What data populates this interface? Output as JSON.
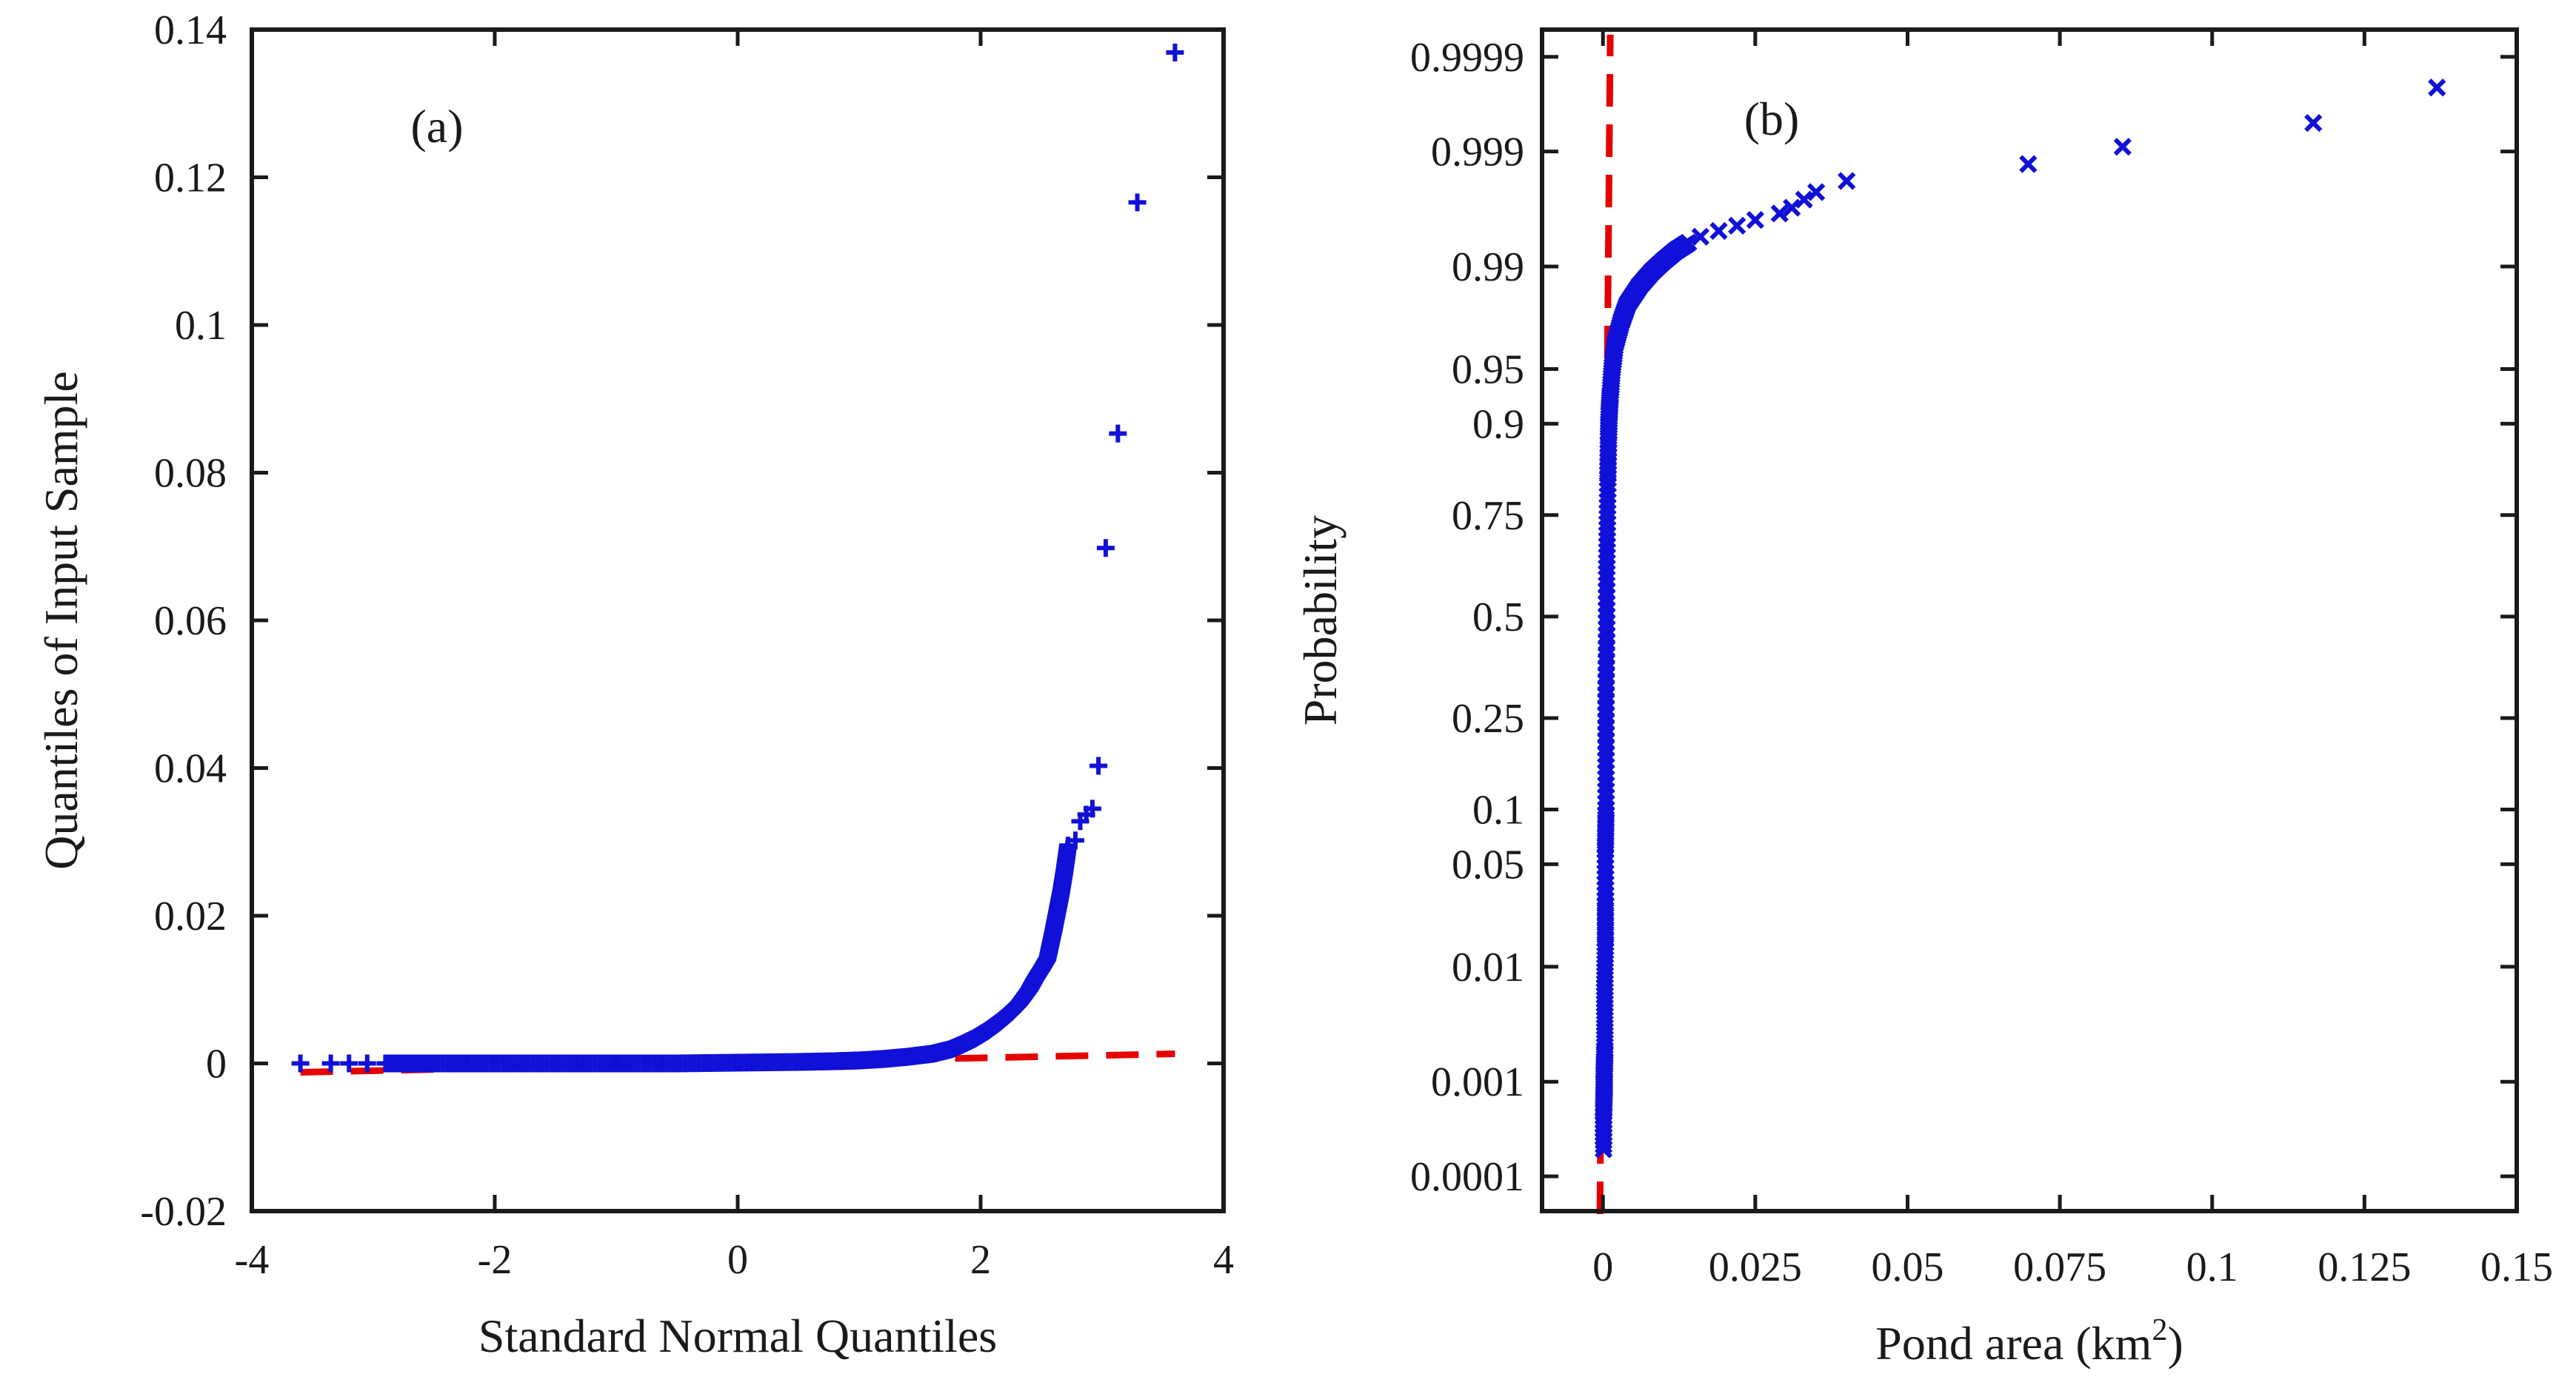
{
  "chart_data": [
    {
      "type": "scatter",
      "panel_label": "(a)",
      "title": "",
      "xlabel": "Standard Normal Quantiles",
      "ylabel": "Quantiles of Input Sample",
      "xlim": [
        -4,
        4
      ],
      "ylim": [
        -0.02,
        0.14
      ],
      "x_ticks": [
        -4,
        -2,
        0,
        2,
        4
      ],
      "x_tick_labels": [
        "-4",
        "-2",
        "0",
        "2",
        "4"
      ],
      "y_ticks": [
        -0.02,
        0,
        0.02,
        0.04,
        0.06,
        0.08,
        0.1,
        0.12,
        0.14
      ],
      "y_tick_labels": [
        "-0.02",
        "0",
        "0.02",
        "0.04",
        "0.06",
        "0.08",
        "0.1",
        "0.12",
        "0.14"
      ],
      "marker": "+",
      "marker_color": "#1010d8",
      "reference_line": {
        "style": "dashed",
        "color": "#e60000",
        "points": [
          [
            -3.6,
            -0.0012
          ],
          [
            3.6,
            0.0013
          ]
        ]
      },
      "series": [
        {
          "name": "sample",
          "points": [
            [
              -3.6,
              0.0
            ],
            [
              -3.35,
              0.0
            ],
            [
              -3.2,
              0.0
            ],
            [
              -3.05,
              0.0
            ],
            [
              -2.9,
              0.0
            ],
            [
              -2.5,
              0.0
            ],
            [
              -2.0,
              0.0
            ],
            [
              -1.5,
              0.0
            ],
            [
              -1.0,
              0.0
            ],
            [
              -0.5,
              0.0
            ],
            [
              0.0,
              0.0001
            ],
            [
              0.5,
              0.0002
            ],
            [
              0.8,
              0.0003
            ],
            [
              1.0,
              0.0004
            ],
            [
              1.2,
              0.0006
            ],
            [
              1.4,
              0.0009
            ],
            [
              1.6,
              0.0013
            ],
            [
              1.75,
              0.0019
            ],
            [
              1.85,
              0.0026
            ],
            [
              1.95,
              0.0034
            ],
            [
              2.05,
              0.0044
            ],
            [
              2.15,
              0.0056
            ],
            [
              2.25,
              0.007
            ],
            [
              2.32,
              0.0082
            ],
            [
              2.4,
              0.01
            ],
            [
              2.45,
              0.0115
            ],
            [
              2.5,
              0.0128
            ],
            [
              2.55,
              0.0142
            ],
            [
              2.6,
              0.018
            ],
            [
              2.63,
              0.0205
            ],
            [
              2.66,
              0.023
            ],
            [
              2.69,
              0.026
            ],
            [
              2.72,
              0.0295
            ],
            [
              2.78,
              0.0302
            ],
            [
              2.82,
              0.0328
            ],
            [
              2.87,
              0.0337
            ],
            [
              2.92,
              0.0345
            ],
            [
              2.97,
              0.0403
            ],
            [
              3.03,
              0.0698
            ],
            [
              3.13,
              0.0853
            ],
            [
              3.29,
              0.1166
            ],
            [
              3.6,
              0.1369
            ]
          ]
        }
      ]
    },
    {
      "type": "scatter",
      "panel_label": "(b)",
      "title": "",
      "xlabel": "Pond area (km",
      "xlabel_superscript": "2",
      "xlabel_suffix": ")",
      "ylabel": "Probability",
      "xlim": [
        -0.01,
        0.15
      ],
      "y_scale": "normal-probability",
      "x_ticks": [
        0,
        0.025,
        0.05,
        0.075,
        0.1,
        0.125,
        0.15
      ],
      "x_tick_labels": [
        "0",
        "0.025",
        "0.05",
        "0.075",
        "0.1",
        "0.125",
        "0.15"
      ],
      "y_ticks": [
        0.0001,
        0.001,
        0.01,
        0.05,
        0.1,
        0.25,
        0.5,
        0.75,
        0.9,
        0.95,
        0.99,
        0.999,
        0.9999
      ],
      "y_tick_labels": [
        "0.0001",
        "0.001",
        "0.01",
        "0.05",
        "0.1",
        "0.25",
        "0.5",
        "0.75",
        "0.9",
        "0.95",
        "0.99",
        "0.999",
        "0.9999"
      ],
      "marker": "x",
      "marker_color": "#1010d8",
      "reference_line": {
        "style": "dashed",
        "color": "#e60000",
        "points": [
          [
            -0.0005,
            5e-05
          ],
          [
            0.0012,
            0.99995
          ]
        ]
      },
      "series": [
        {
          "name": "pond area",
          "points": [
            [
              0.0001,
              0.0002
            ],
            [
              0.0001,
              0.0005
            ],
            [
              0.0002,
              0.0008
            ],
            [
              0.0002,
              0.0012
            ],
            [
              0.0003,
              0.002
            ],
            [
              0.0003,
              0.004
            ],
            [
              0.0003,
              0.008
            ],
            [
              0.0004,
              0.015
            ],
            [
              0.0004,
              0.03
            ],
            [
              0.0004,
              0.06
            ],
            [
              0.0005,
              0.1
            ],
            [
              0.0005,
              0.18
            ],
            [
              0.0005,
              0.3
            ],
            [
              0.0006,
              0.45
            ],
            [
              0.0006,
              0.6
            ],
            [
              0.0007,
              0.72
            ],
            [
              0.0008,
              0.82
            ],
            [
              0.0009,
              0.88
            ],
            [
              0.001,
              0.91
            ],
            [
              0.0012,
              0.93
            ],
            [
              0.0015,
              0.95
            ],
            [
              0.002,
              0.965
            ],
            [
              0.003,
              0.975
            ],
            [
              0.004,
              0.981
            ],
            [
              0.006,
              0.986
            ],
            [
              0.008,
              0.989
            ],
            [
              0.01,
              0.991
            ],
            [
              0.012,
              0.9925
            ],
            [
              0.014,
              0.9935
            ],
            [
              0.016,
              0.9942
            ],
            [
              0.019,
              0.9948
            ],
            [
              0.022,
              0.9953
            ],
            [
              0.025,
              0.9958
            ],
            [
              0.029,
              0.9963
            ],
            [
              0.031,
              0.9967
            ],
            [
              0.033,
              0.9972
            ],
            [
              0.035,
              0.9976
            ],
            [
              0.04,
              0.9981
            ],
            [
              0.0698,
              0.99868
            ],
            [
              0.0853,
              0.9991
            ],
            [
              0.1166,
              0.99948
            ],
            [
              0.1369,
              0.99978
            ]
          ]
        }
      ]
    }
  ]
}
